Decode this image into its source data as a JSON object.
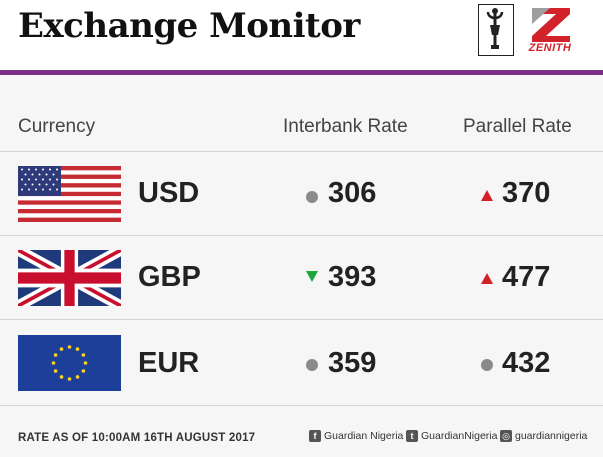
{
  "header": {
    "title": "Exchange Monitor",
    "logo_right": "ZENITH"
  },
  "columns": {
    "currency": "Currency",
    "interbank": "Interbank Rate",
    "parallel": "Parallel Rate"
  },
  "rows": [
    {
      "code": "USD",
      "flag": "us-flag-icon",
      "interbank": "306",
      "interbank_trend": "unchanged",
      "parallel": "370",
      "parallel_trend": "up"
    },
    {
      "code": "GBP",
      "flag": "uk-flag-icon",
      "interbank": "393",
      "interbank_trend": "down",
      "parallel": "477",
      "parallel_trend": "up"
    },
    {
      "code": "EUR",
      "flag": "eu-flag-icon",
      "interbank": "359",
      "interbank_trend": "unchanged",
      "parallel": "432",
      "parallel_trend": "unchanged"
    }
  ],
  "colors": {
    "accent": "#7b2f86",
    "up": "#d32027",
    "down": "#1fa53b",
    "unchanged": "#8a8a8a"
  },
  "footer": {
    "note": "RATE AS OF 10:00AM 16TH AUGUST 2017",
    "facebook": "Guardian Nigeria",
    "twitter": "GuardianNigeria",
    "instagram": "guardiannigeria"
  }
}
